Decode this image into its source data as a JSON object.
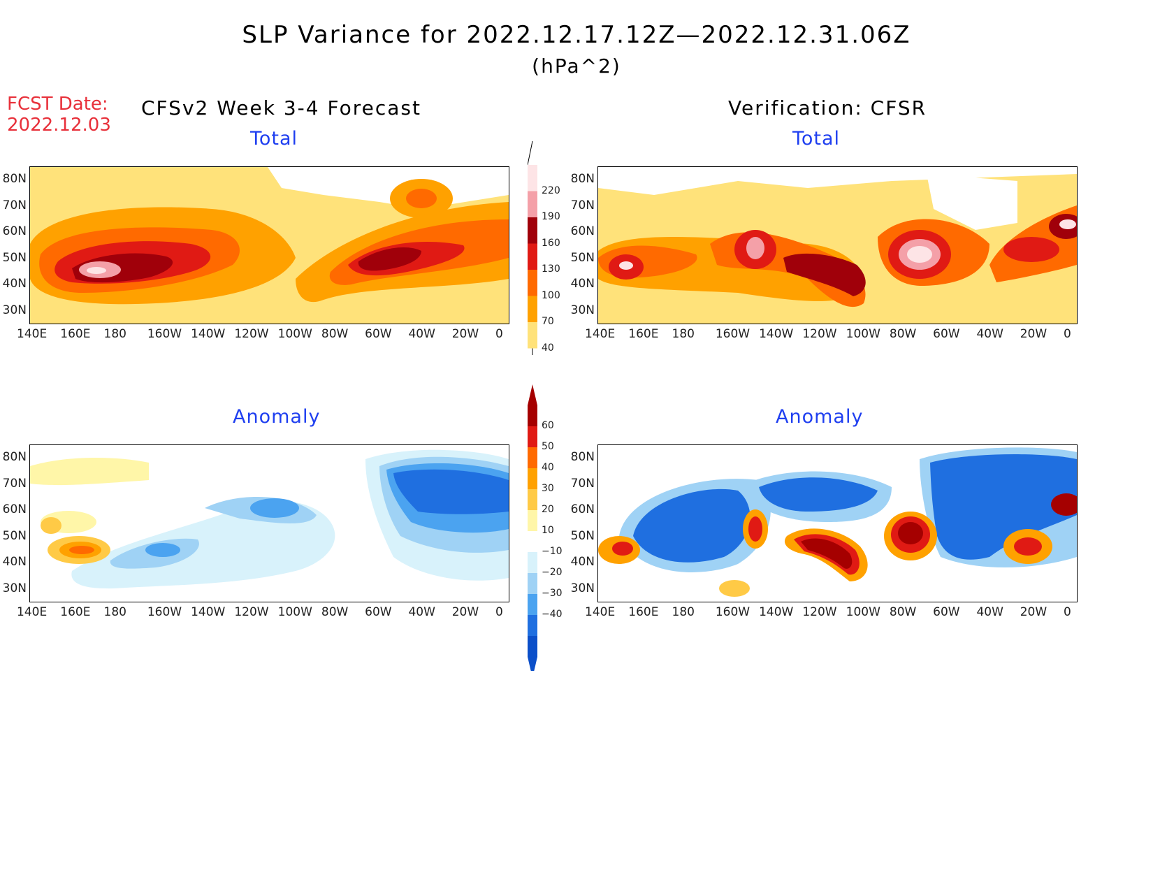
{
  "title": "SLP Variance for 2022.12.17.12Z—2022.12.31.06Z",
  "units": "(hPa^2)",
  "fcst_label": "FCST Date:",
  "fcst_date": "2022.12.03",
  "left_heading": "CFSv2 Week 3-4 Forecast",
  "right_heading": "Verification: CFSR",
  "panels": {
    "total_label": "Total",
    "anomaly_label": "Anomaly"
  },
  "lon_ticks": [
    "140E",
    "160E",
    "180",
    "160W",
    "140W",
    "120W",
    "100W",
    "80W",
    "60W",
    "40W",
    "20W",
    "0"
  ],
  "lat_ticks": [
    "80N",
    "70N",
    "60N",
    "50N",
    "40N",
    "30N"
  ],
  "colorbar_total": {
    "levels": [
      "220",
      "190",
      "160",
      "130",
      "100",
      "70",
      "40"
    ],
    "colors": [
      "#fde4e6",
      "#f4a0a8",
      "#a0000a",
      "#e01a14",
      "#ff6a00",
      "#ffa100",
      "#ffe27a"
    ]
  },
  "colorbar_anomaly": {
    "levels": [
      "60",
      "50",
      "40",
      "30",
      "20",
      "10",
      "−10",
      "−20",
      "−30",
      "−40"
    ],
    "colors": [
      "#a50000",
      "#e01a14",
      "#ff6a00",
      "#ffa100",
      "#ffca46",
      "#fff6a8",
      "#ffffff",
      "#d8f2fb",
      "#9fd2f5",
      "#4ba3f0",
      "#1f6fe0",
      "#0b4fc9"
    ]
  },
  "colors": {
    "title_red": "#e8303a",
    "subtitle_blue": "#1f3ff0"
  }
}
